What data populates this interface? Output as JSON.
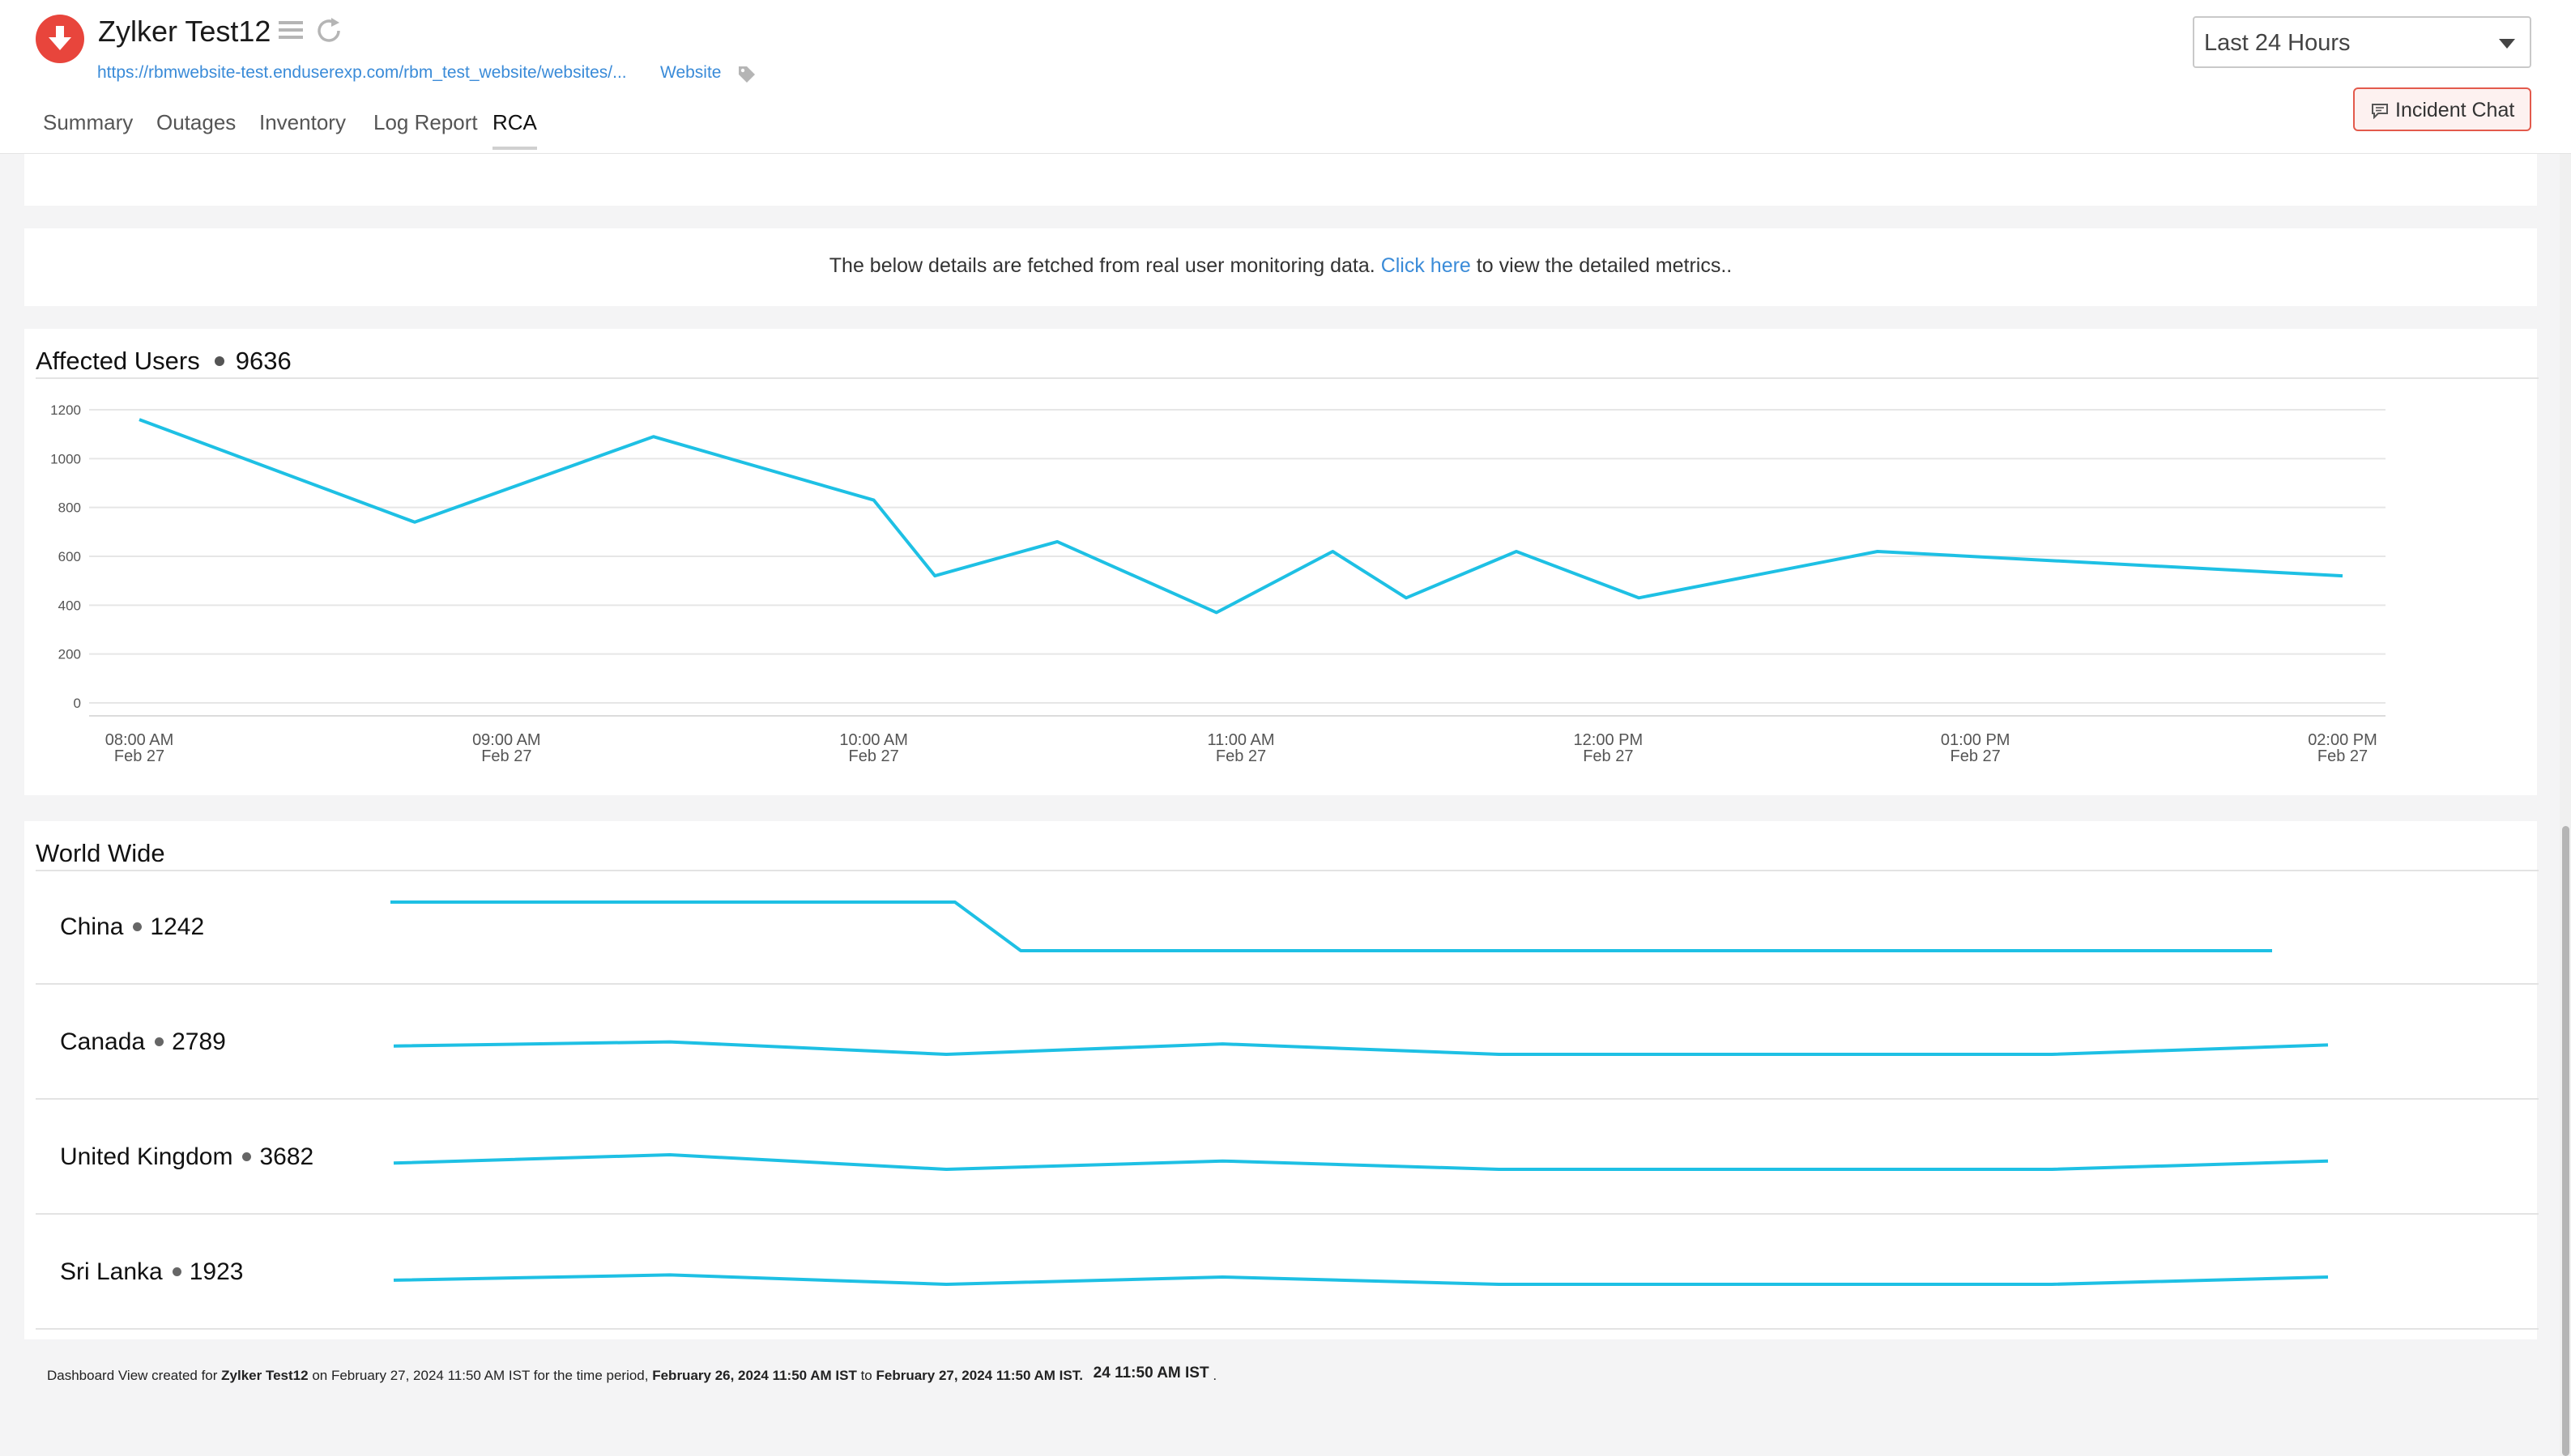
{
  "header": {
    "status": "down",
    "monitor_name": "Zylker Test12",
    "url": "https://rbmwebsite-test.enduserexp.com/rbm_test_website/websites/...",
    "monitor_type": "Website",
    "tabs": [
      {
        "label": "Summary",
        "active": false
      },
      {
        "label": "Outages",
        "active": false
      },
      {
        "label": "Inventory",
        "active": false
      },
      {
        "label": "Log Report",
        "active": false
      },
      {
        "label": "RCA",
        "active": true
      }
    ],
    "time_range": "Last 24 Hours",
    "incident_chat_label": "Incident Chat"
  },
  "notice": {
    "text_before": "The below details are fetched from real user monitoring data.",
    "link_text": "Click here",
    "text_after": "to view the detailed metrics.."
  },
  "affected_users": {
    "title": "Affected Users",
    "total": "9636"
  },
  "world_wide": {
    "title": "World Wide",
    "countries": [
      {
        "name": "China",
        "count": "1242",
        "series": [
          1,
          1,
          1,
          1,
          1,
          1,
          0,
          0,
          0,
          0,
          0,
          0,
          0,
          0,
          0,
          0
        ]
      },
      {
        "name": "Canada",
        "count": "2789",
        "series": [
          210,
          230,
          170,
          220,
          170,
          170,
          170,
          215
        ]
      },
      {
        "name": "United Kingdom",
        "count": "3682",
        "series": [
          200,
          240,
          170,
          210,
          170,
          170,
          170,
          210
        ]
      },
      {
        "name": "Sri Lanka",
        "count": "1923",
        "series": [
          190,
          215,
          170,
          205,
          170,
          170,
          170,
          205
        ]
      }
    ]
  },
  "footer": {
    "prefix": "Dashboard View created for",
    "monitor": "Zylker Test12",
    "created_on": "on February 27, 2024 11:50 AM IST for the time period,",
    "from": "February 26, 2024 11:50 AM IST",
    "to_word": "to",
    "to": "February 27, 2024 11:50 AM IST.",
    "extra": "24 11:50 AM IST",
    "extra_suffix": "."
  },
  "colors": {
    "line": "#1ec0e4",
    "down": "#e8453c",
    "link": "#3a8bd8",
    "incident_border": "#e35a4c"
  },
  "chart_data": {
    "type": "line",
    "title": "Affected Users",
    "x": [
      "08:00 AM",
      "08:45 AM",
      "09:24 AM",
      "10:00 AM",
      "10:10 AM",
      "10:30 AM",
      "10:56 AM",
      "11:15 AM",
      "11:27 AM",
      "11:45 AM",
      "12:05 PM",
      "12:44 PM",
      "02:00 PM"
    ],
    "x_dates": [
      "Feb 27",
      "Feb 27",
      "Feb 27",
      "Feb 27",
      "Feb 27",
      "Feb 27",
      "Feb 27",
      "Feb 27",
      "Feb 27",
      "Feb 27",
      "Feb 27",
      "Feb 27",
      "Feb 27"
    ],
    "series": [
      {
        "values": [
          1160,
          740,
          1090,
          830,
          520,
          660,
          370,
          620,
          430,
          620,
          430,
          620,
          520
        ]
      }
    ],
    "x_ticks": [
      {
        "time": "08:00 AM",
        "date": "Feb 27"
      },
      {
        "time": "09:00 AM",
        "date": "Feb 27"
      },
      {
        "time": "10:00 AM",
        "date": "Feb 27"
      },
      {
        "time": "11:00 AM",
        "date": "Feb 27"
      },
      {
        "time": "12:00 PM",
        "date": "Feb 27"
      },
      {
        "time": "01:00 PM",
        "date": "Feb 27"
      },
      {
        "time": "02:00 PM",
        "date": "Feb 27"
      }
    ],
    "y_ticks": [
      0,
      200,
      400,
      600,
      800,
      1000,
      1200
    ],
    "ylim": [
      0,
      1200
    ],
    "grid": true,
    "legend": "none"
  }
}
